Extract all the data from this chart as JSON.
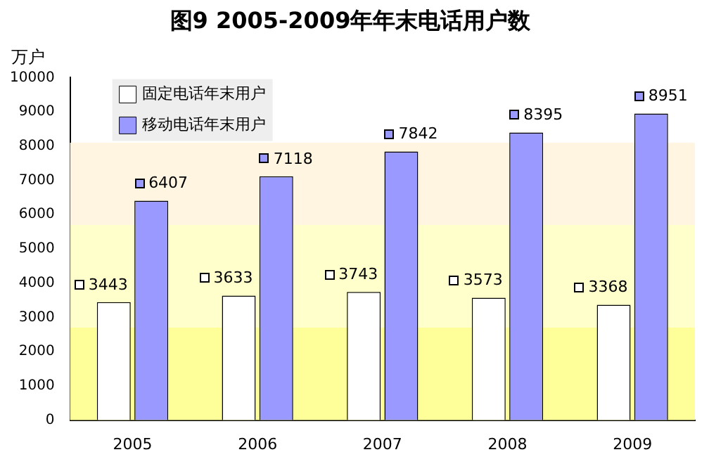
{
  "chart_data": {
    "type": "bar",
    "title": "图9 2005-2009年年末电话用户数",
    "ylabel": "万户",
    "categories": [
      "2005",
      "2006",
      "2007",
      "2008",
      "2009"
    ],
    "series": [
      {
        "name": "固定电话年末用户",
        "color": "#ffffff",
        "values": [
          3443,
          3633,
          3743,
          3573,
          3368
        ]
      },
      {
        "name": "移动电话年末用户",
        "color": "#9999ff",
        "values": [
          6407,
          7118,
          7842,
          8395,
          8951
        ]
      }
    ],
    "ylim": [
      0,
      10000
    ],
    "yticks": [
      0,
      1000,
      2000,
      3000,
      4000,
      5000,
      6000,
      7000,
      8000,
      9000,
      10000
    ],
    "bands": [
      {
        "axis": "y",
        "from": 0,
        "to": 2700,
        "color": "#ffff99"
      },
      {
        "axis": "y",
        "from": 2700,
        "to": 5700,
        "color": "#ffffcc"
      },
      {
        "axis": "y",
        "from": 5700,
        "to": 8100,
        "color": "#fff5e0"
      }
    ],
    "data_labels": true,
    "legend": "top left",
    "grid": false
  }
}
